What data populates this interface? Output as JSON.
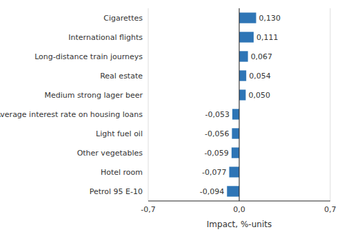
{
  "chart_data": {
    "type": "bar",
    "orientation": "horizontal",
    "xlabel": "Impact, %-units",
    "categories": [
      "Petrol 95 E‐10",
      "Hotel room",
      "Other vegetables",
      "Light fuel oil",
      "Average interest rate on housing loans",
      "Medium strong lager beer",
      "Real estate",
      "Long-distance train journeys",
      "International flights",
      "Cigarettes"
    ],
    "values": [
      -0.094,
      -0.077,
      -0.059,
      -0.056,
      -0.053,
      0.05,
      0.054,
      0.067,
      0.111,
      0.13
    ],
    "value_labels": [
      "-0,094",
      "-0,077",
      "-0,059",
      "-0,056",
      "-0,053",
      "0,050",
      "0,054",
      "0,067",
      "0,111",
      "0,130"
    ],
    "data_labels": true,
    "color": "#2E75B6",
    "xlim": [
      -0.7,
      0.7
    ],
    "xticks": [
      {
        "value": -0.7,
        "label": "-0,7"
      },
      {
        "value": 0.0,
        "label": "0,0"
      },
      {
        "value": 0.7,
        "label": "0,7"
      }
    ],
    "grid": true
  }
}
